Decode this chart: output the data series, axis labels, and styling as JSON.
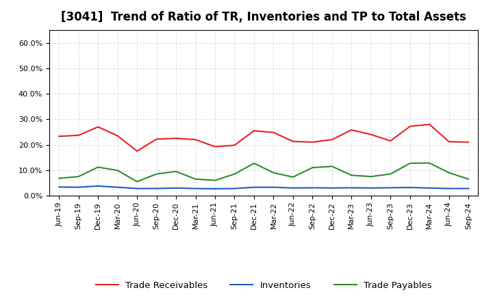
{
  "title": "[3041]  Trend of Ratio of TR, Inventories and TP to Total Assets",
  "x_labels": [
    "Jun-19",
    "Sep-19",
    "Dec-19",
    "Mar-20",
    "Jun-20",
    "Sep-20",
    "Dec-20",
    "Mar-21",
    "Jun-21",
    "Sep-21",
    "Dec-21",
    "Mar-22",
    "Jun-22",
    "Sep-22",
    "Dec-22",
    "Mar-23",
    "Jun-23",
    "Sep-23",
    "Dec-23",
    "Mar-24",
    "Jun-24",
    "Sep-24"
  ],
  "trade_receivables": [
    0.233,
    0.237,
    0.27,
    0.235,
    0.175,
    0.222,
    0.225,
    0.22,
    0.192,
    0.198,
    0.255,
    0.248,
    0.213,
    0.21,
    0.22,
    0.258,
    0.24,
    0.215,
    0.272,
    0.28,
    0.212,
    0.21
  ],
  "inventories": [
    0.034,
    0.033,
    0.038,
    0.033,
    0.028,
    0.028,
    0.03,
    0.028,
    0.027,
    0.028,
    0.033,
    0.033,
    0.03,
    0.031,
    0.03,
    0.031,
    0.03,
    0.031,
    0.032,
    0.03,
    0.028,
    0.028
  ],
  "trade_payables": [
    0.068,
    0.075,
    0.112,
    0.099,
    0.055,
    0.085,
    0.095,
    0.065,
    0.06,
    0.085,
    0.127,
    0.09,
    0.073,
    0.11,
    0.115,
    0.08,
    0.075,
    0.085,
    0.127,
    0.128,
    0.09,
    0.065
  ],
  "tr_color": "#e82020",
  "inv_color": "#1f5bbd",
  "tp_color": "#2e8b2e",
  "ylim": [
    0.0,
    0.65
  ],
  "yticks": [
    0.0,
    0.1,
    0.2,
    0.3,
    0.4,
    0.5,
    0.6
  ],
  "legend_labels": [
    "Trade Receivables",
    "Inventories",
    "Trade Payables"
  ],
  "bg_color": "#ffffff",
  "plot_bg_color": "#ffffff",
  "grid_color": "#aaaaaa",
  "title_fontsize": 12,
  "tick_fontsize": 8,
  "legend_fontsize": 9.5
}
